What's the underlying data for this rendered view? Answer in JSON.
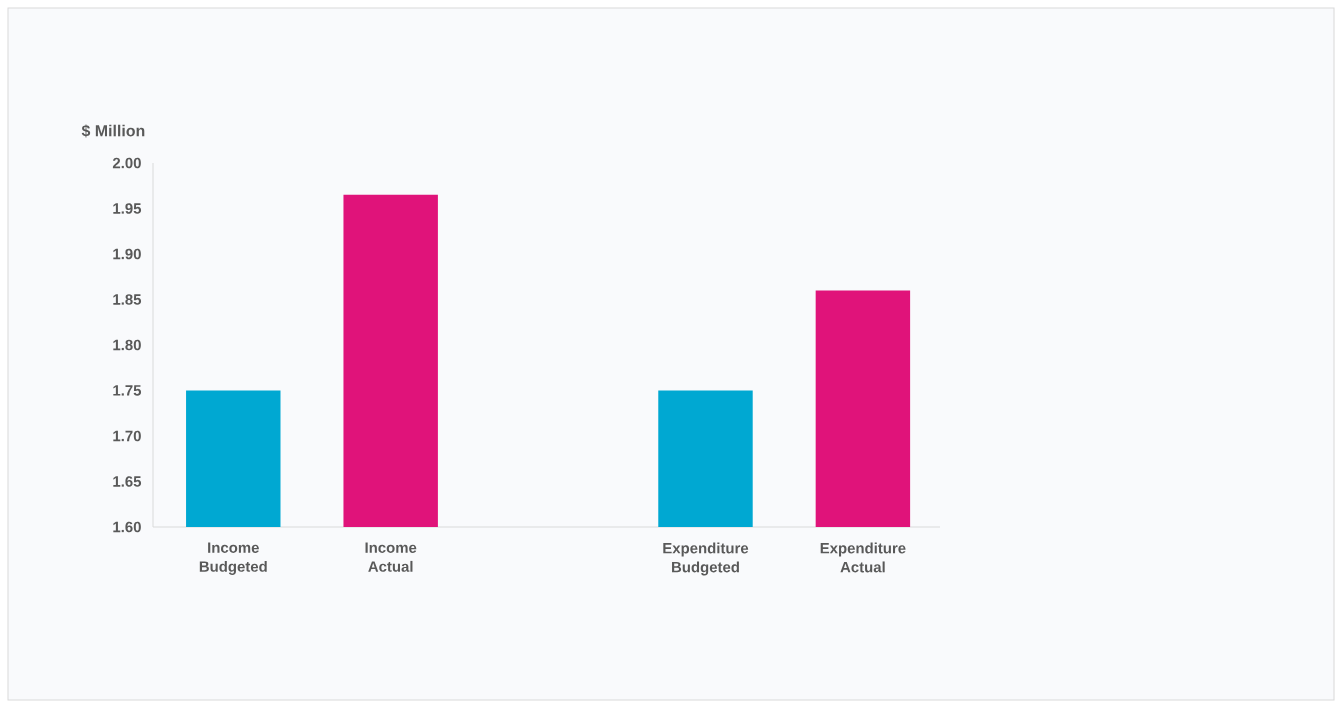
{
  "chart_data": {
    "type": "bar",
    "ylabel": "$ Million",
    "categories": [
      "Income Budgeted",
      "Income Actual",
      null,
      "Expenditure Budgeted",
      "Expenditure Actual"
    ],
    "values": [
      1.75,
      1.965,
      null,
      1.75,
      1.86
    ],
    "colors": [
      "#00a8d2",
      "#e0137a",
      null,
      "#00a8d2",
      "#e0137a"
    ],
    "ylim": [
      1.6,
      2.0
    ],
    "yticks": [
      {
        "value": 1.6,
        "label": "1.60"
      },
      {
        "value": 1.65,
        "label": "1.65"
      },
      {
        "value": 1.7,
        "label": "1.70"
      },
      {
        "value": 1.75,
        "label": "1.75"
      },
      {
        "value": 1.8,
        "label": "1.80"
      },
      {
        "value": 1.85,
        "label": "1.85"
      },
      {
        "value": 1.9,
        "label": "1.90"
      },
      {
        "value": 1.95,
        "label": "1.95"
      },
      {
        "value": 2.0,
        "label": "2.00"
      }
    ],
    "grid": false
  }
}
